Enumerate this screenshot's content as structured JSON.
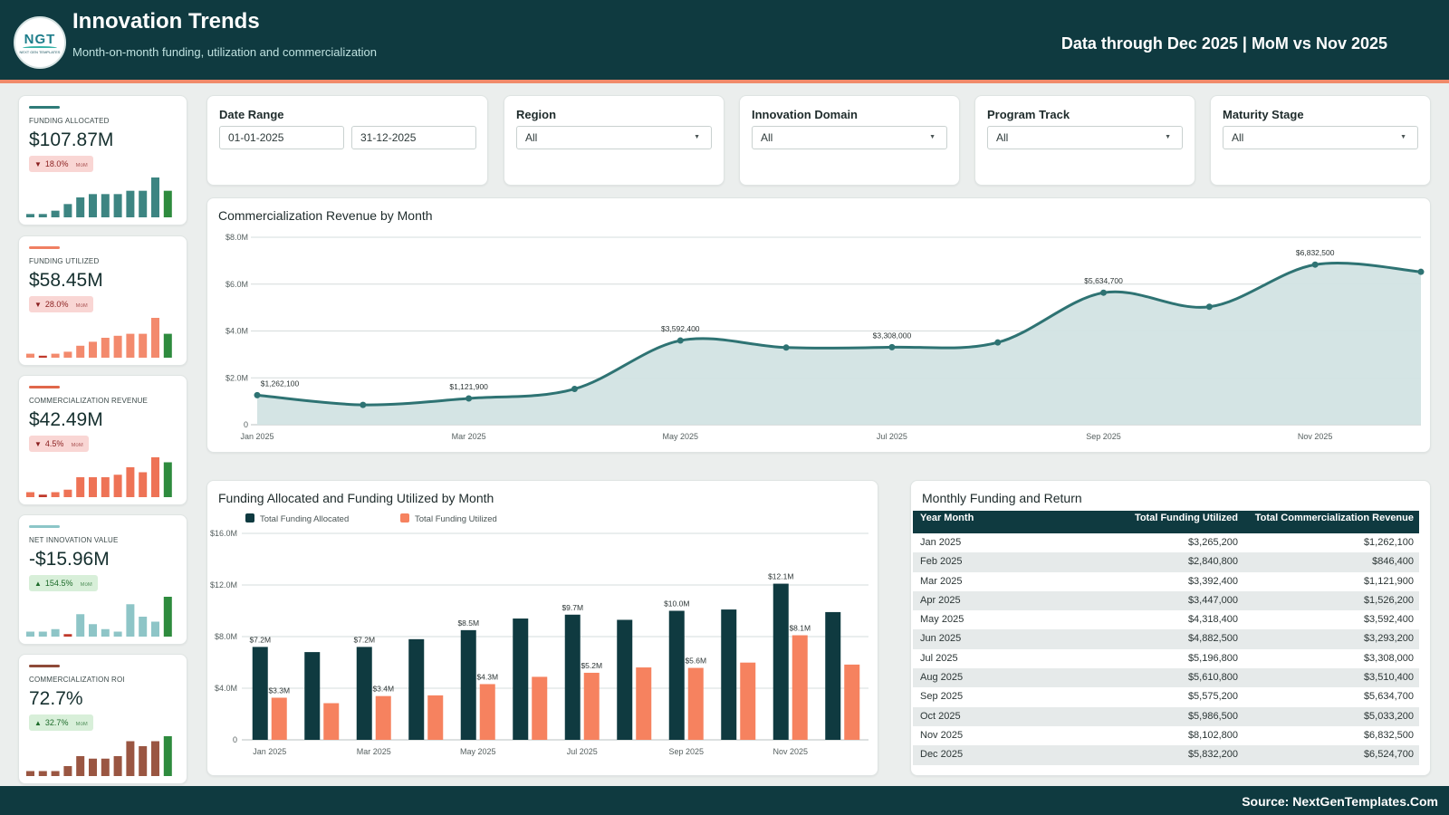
{
  "header": {
    "logo_text": "NGT",
    "logo_subtext": "NEXT GEN TEMPLATES",
    "title": "Innovation Trends",
    "subtitle": "Month-on-month funding, utilization and commercialization",
    "data_note": "Data through Dec 2025 | MoM vs Nov 2025"
  },
  "kpis": [
    {
      "label": "Funding Allocated",
      "value": "$107.87M",
      "delta": "18.0%",
      "direction": "down",
      "mom": "MoM",
      "accent": "#2e7b78",
      "bar_color": "#3d8582",
      "spark": [
        1,
        1,
        2,
        4,
        6,
        7,
        7,
        7,
        8,
        8,
        12,
        8
      ]
    },
    {
      "label": "Funding Utilized",
      "value": "$58.45M",
      "delta": "28.0%",
      "direction": "down",
      "mom": "MoM",
      "accent": "#f07f62",
      "bar_color": "#f38a6d",
      "spark": [
        1,
        0.5,
        1,
        1.5,
        3,
        4,
        5,
        5.5,
        6,
        6,
        10,
        6
      ]
    },
    {
      "label": "Commercialization Revenue",
      "value": "$42.49M",
      "delta": "4.5%",
      "direction": "down",
      "mom": "MoM",
      "accent": "#e0674a",
      "bar_color": "#ee7356",
      "spark": [
        1,
        0.5,
        1,
        1.5,
        4,
        4,
        4,
        4.5,
        6,
        5,
        8,
        7
      ]
    },
    {
      "label": "Net Innovation Value",
      "value": "-$15.96M",
      "delta": "154.5%",
      "direction": "up",
      "mom": "MoM",
      "accent": "#8cc6c8",
      "bar_color": "#8ec5c7",
      "spark": [
        1,
        1,
        1.5,
        0.5,
        4.5,
        2.5,
        1.5,
        1,
        6.5,
        4,
        3,
        8
      ]
    },
    {
      "label": "Commercialization ROI",
      "value": "72.7%",
      "delta": "32.7%",
      "direction": "up",
      "mom": "MoM",
      "accent": "#8e4a38",
      "bar_color": "#9a5642",
      "spark": [
        1,
        1,
        1,
        2,
        4,
        3.5,
        3.5,
        4,
        7,
        6,
        7,
        8
      ]
    }
  ],
  "filters": {
    "date_range": {
      "label": "Date Range",
      "start": "01-01-2025",
      "end": "31-12-2025"
    },
    "region": {
      "label": "Region",
      "value": "All"
    },
    "domain": {
      "label": "Innovation Domain",
      "value": "All"
    },
    "track": {
      "label": "Program Track",
      "value": "All"
    },
    "maturity": {
      "label": "Maturity Stage",
      "value": "All"
    }
  },
  "line_chart_title": "Commercialization Revenue by Month",
  "bar_chart_title": "Funding Allocated and Funding Utilized by Month",
  "table": {
    "title": "Monthly Funding and Return",
    "columns": [
      "Year Month",
      "Total Funding Utilized",
      "Total Commercialization Revenue"
    ],
    "rows": [
      [
        "Jan 2025",
        "$3,265,200",
        "$1,262,100"
      ],
      [
        "Feb 2025",
        "$2,840,800",
        "$846,400"
      ],
      [
        "Mar 2025",
        "$3,392,400",
        "$1,121,900"
      ],
      [
        "Apr 2025",
        "$3,447,000",
        "$1,526,200"
      ],
      [
        "May 2025",
        "$4,318,400",
        "$3,592,400"
      ],
      [
        "Jun 2025",
        "$4,882,500",
        "$3,293,200"
      ],
      [
        "Jul 2025",
        "$5,196,800",
        "$3,308,000"
      ],
      [
        "Aug 2025",
        "$5,610,800",
        "$3,510,400"
      ],
      [
        "Sep 2025",
        "$5,575,200",
        "$5,634,700"
      ],
      [
        "Oct 2025",
        "$5,986,500",
        "$5,033,200"
      ],
      [
        "Nov 2025",
        "$8,102,800",
        "$6,832,500"
      ],
      [
        "Dec 2025",
        "$5,832,200",
        "$6,524,700"
      ]
    ]
  },
  "footer": {
    "source": "Source: NextGenTemplates.Com"
  },
  "chart_data": [
    {
      "type": "area",
      "title": "Commercialization Revenue by Month",
      "x": [
        "Jan 2025",
        "Feb 2025",
        "Mar 2025",
        "Apr 2025",
        "May 2025",
        "Jun 2025",
        "Jul 2025",
        "Aug 2025",
        "Sep 2025",
        "Oct 2025",
        "Nov 2025",
        "Dec 2025"
      ],
      "values": [
        1262100,
        846400,
        1121900,
        1526200,
        3592400,
        3293200,
        3308000,
        3510400,
        5634700,
        5033200,
        6832500,
        6524700
      ],
      "x_tick_labels": [
        "Jan 2025",
        "Mar 2025",
        "May 2025",
        "Jul 2025",
        "Sep 2025",
        "Nov 2025"
      ],
      "y_tick_labels": [
        "0",
        "$2.0M",
        "$4.0M",
        "$6.0M",
        "$8.0M"
      ],
      "ylim": [
        0,
        8000000
      ],
      "data_labels": [
        {
          "index": 0,
          "text": "$1,262,100"
        },
        {
          "index": 2,
          "text": "$1,121,900"
        },
        {
          "index": 4,
          "text": "$3,592,400"
        },
        {
          "index": 6,
          "text": "$3,308,000"
        },
        {
          "index": 8,
          "text": "$5,634,700"
        },
        {
          "index": 10,
          "text": "$6,832,500"
        }
      ],
      "colors": {
        "line": "#2e7373",
        "fill": "#d2e3e3"
      },
      "grid": true
    },
    {
      "type": "bar",
      "title": "Funding Allocated and Funding Utilized by Month",
      "categories": [
        "Jan 2025",
        "Feb 2025",
        "Mar 2025",
        "Apr 2025",
        "May 2025",
        "Jun 2025",
        "Jul 2025",
        "Aug 2025",
        "Sep 2025",
        "Oct 2025",
        "Nov 2025",
        "Dec 2025"
      ],
      "x_tick_labels": [
        "Jan 2025",
        "Mar 2025",
        "May 2025",
        "Jul 2025",
        "Sep 2025",
        "Nov 2025"
      ],
      "series": [
        {
          "name": "Total Funding Allocated",
          "color": "#0f3a40",
          "values": [
            7200000,
            6800000,
            7200000,
            7800000,
            8500000,
            9400000,
            9700000,
            9300000,
            10000000,
            10100000,
            12100000,
            9900000
          ],
          "labels": [
            {
              "index": 0,
              "text": "$7.2M"
            },
            {
              "index": 2,
              "text": "$7.2M"
            },
            {
              "index": 4,
              "text": "$8.5M"
            },
            {
              "index": 6,
              "text": "$9.7M"
            },
            {
              "index": 8,
              "text": "$10.0M"
            },
            {
              "index": 10,
              "text": "$12.1M"
            }
          ]
        },
        {
          "name": "Total Funding Utilized",
          "color": "#f6825f",
          "values": [
            3265200,
            2840800,
            3392400,
            3447000,
            4318400,
            4882500,
            5196800,
            5610800,
            5575200,
            5986500,
            8102800,
            5832200
          ],
          "labels": [
            {
              "index": 0,
              "text": "$3.3M"
            },
            {
              "index": 2,
              "text": "$3.4M"
            },
            {
              "index": 4,
              "text": "$4.3M"
            },
            {
              "index": 6,
              "text": "$5.2M"
            },
            {
              "index": 8,
              "text": "$5.6M"
            },
            {
              "index": 10,
              "text": "$8.1M"
            }
          ]
        }
      ],
      "y_tick_labels": [
        "0",
        "$4.0M",
        "$8.0M",
        "$12.0M",
        "$16.0M"
      ],
      "ylim": [
        0,
        16000000
      ],
      "legend": "top-left",
      "grid": true
    }
  ]
}
